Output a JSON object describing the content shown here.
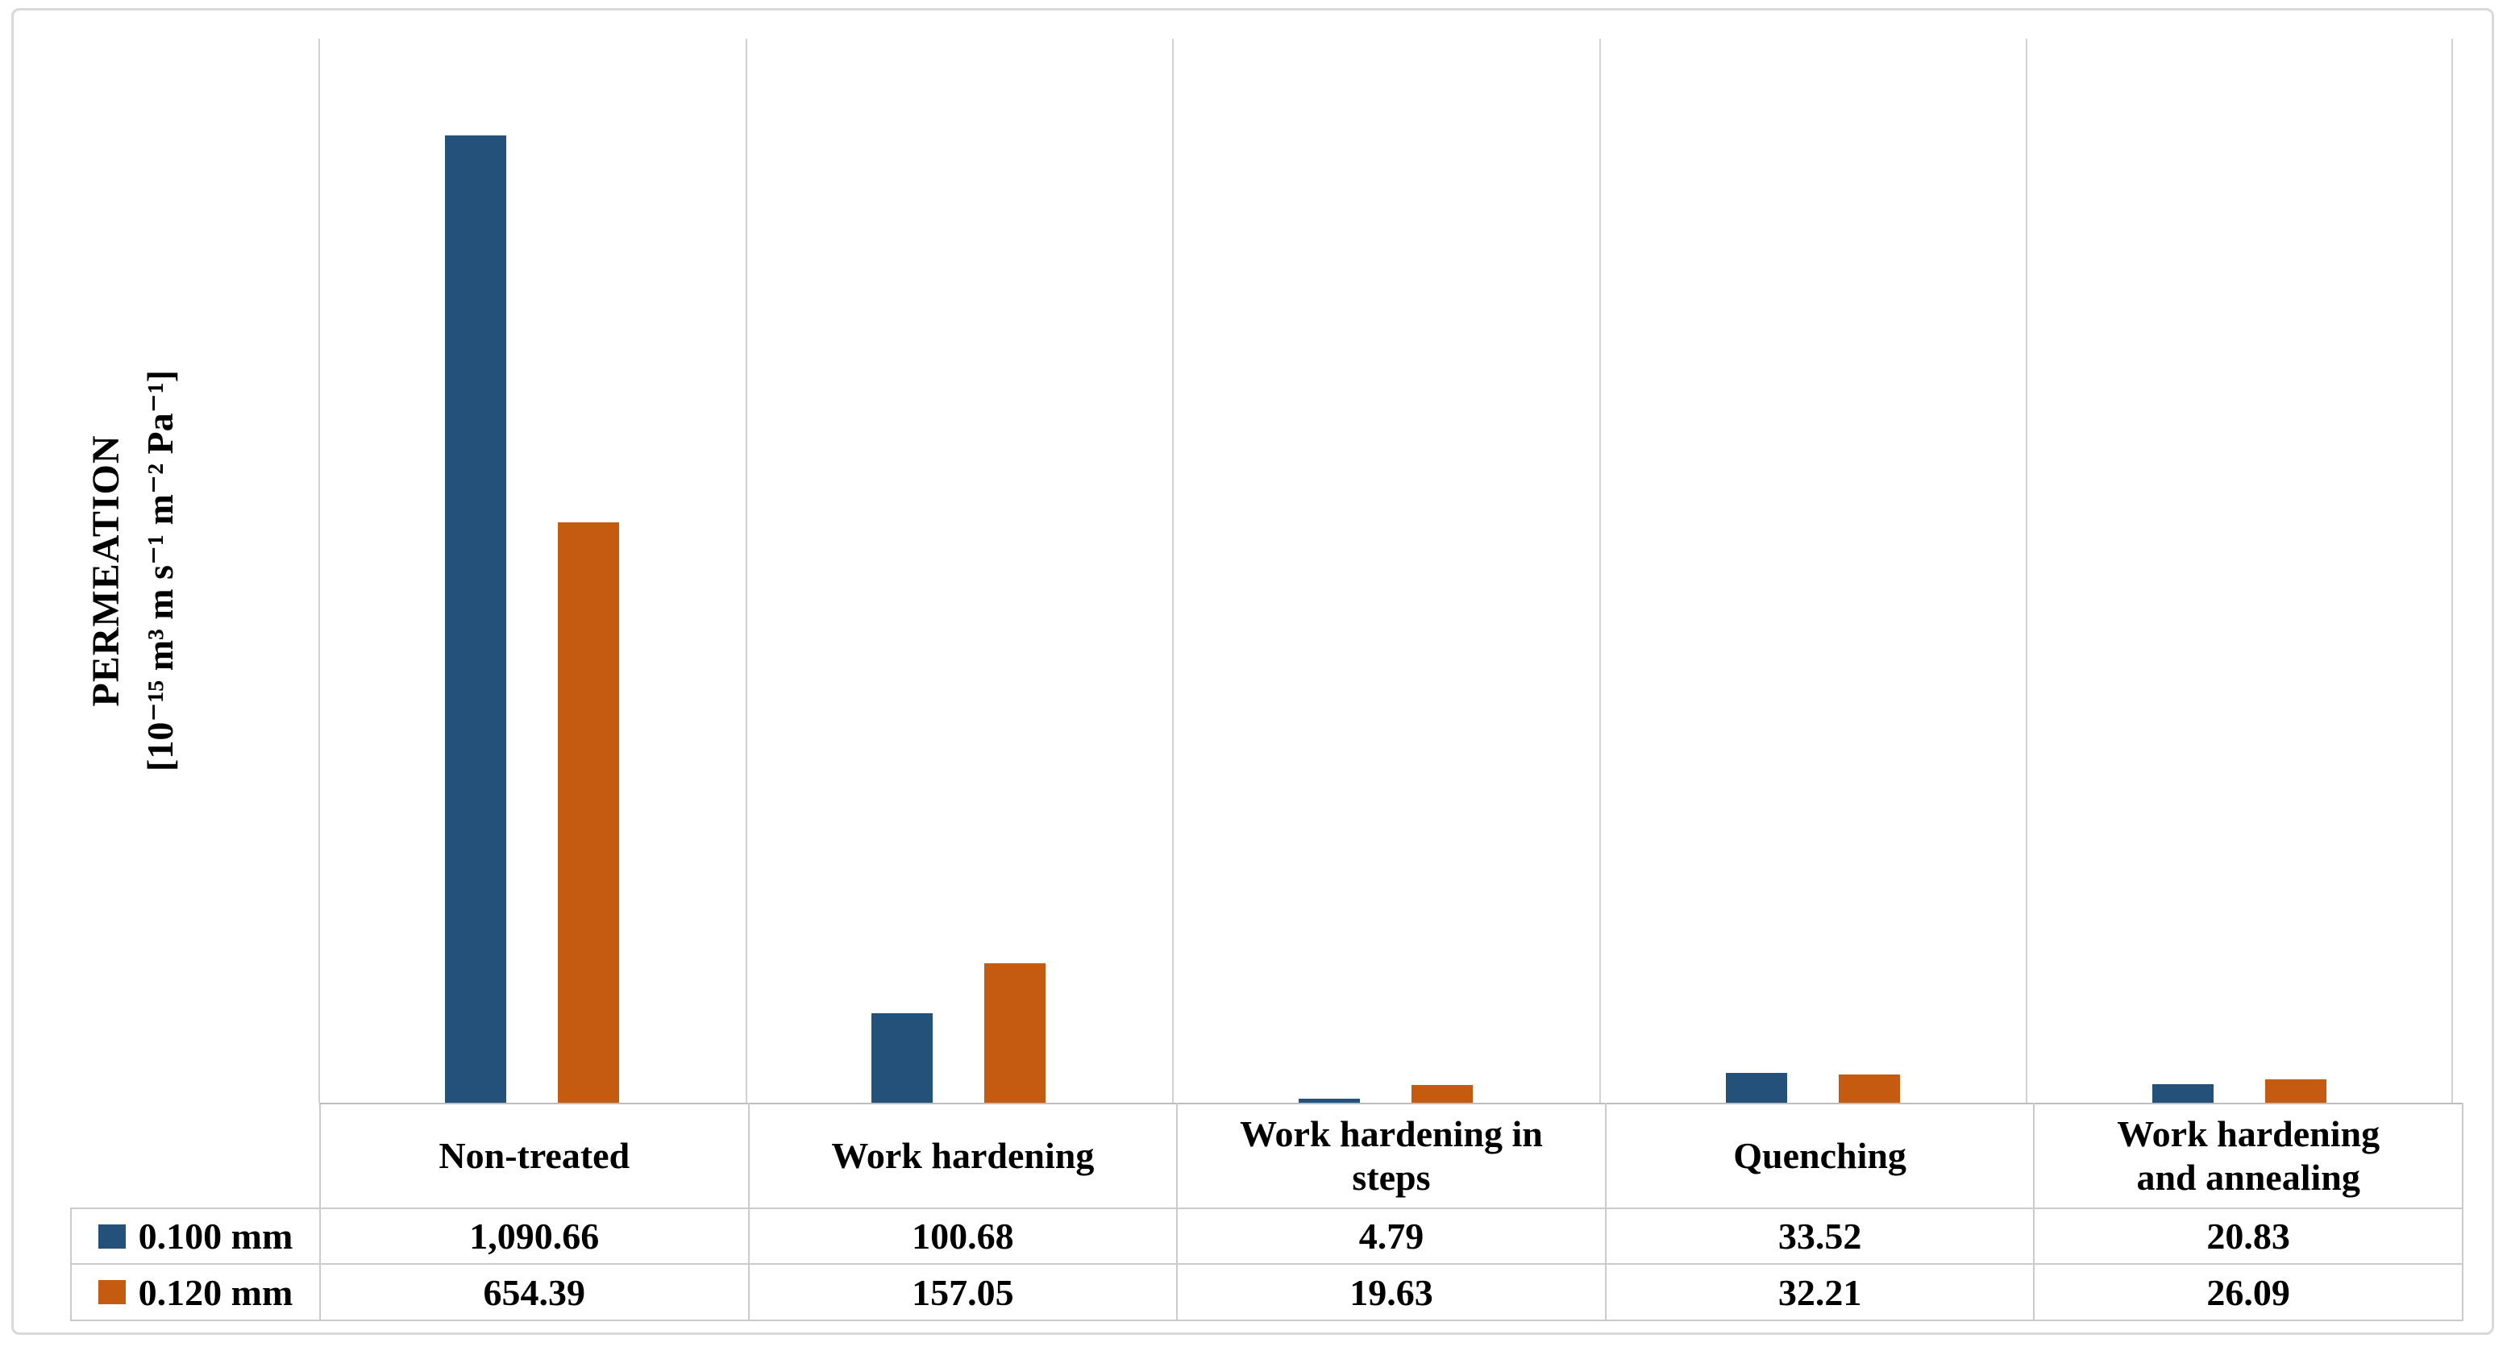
{
  "chart_data": {
    "type": "bar",
    "title": "",
    "ylabel_title": "PERMEATION",
    "ylabel_unit": "[10⁻¹⁵ m³ m s⁻¹ m⁻² Pa⁻¹]",
    "categories": [
      "Non-treated",
      "Work hardening",
      "Work hardening in steps",
      "Quenching",
      "Work hardening and annealing"
    ],
    "categories_display": [
      "Non-treated",
      "Work hardening",
      "Work hardening in\nsteps",
      "Quenching",
      "Work hardening\nand annealing"
    ],
    "series": [
      {
        "name": "0.100 mm",
        "color": "#245179",
        "values": [
          1090.66,
          100.68,
          4.79,
          33.52,
          20.83
        ],
        "display": [
          "1,090.66",
          "100.68",
          "4.79",
          "33.52",
          "20.83"
        ]
      },
      {
        "name": "0.120 mm",
        "color": "#C55A11",
        "values": [
          654.39,
          157.05,
          19.63,
          32.21,
          26.09
        ],
        "display": [
          "654.39",
          "157.05",
          "19.63",
          "32.21",
          "26.09"
        ]
      }
    ],
    "ylim": [
      0,
      1200
    ],
    "grid": "vertical-only",
    "gridline_color": "#D2D2D2",
    "table_border_color": "#CCCBCB",
    "legend_position": "data-table-left-keys",
    "frame_color": "#D9D9D9",
    "background_color": "#FFFFFF"
  }
}
